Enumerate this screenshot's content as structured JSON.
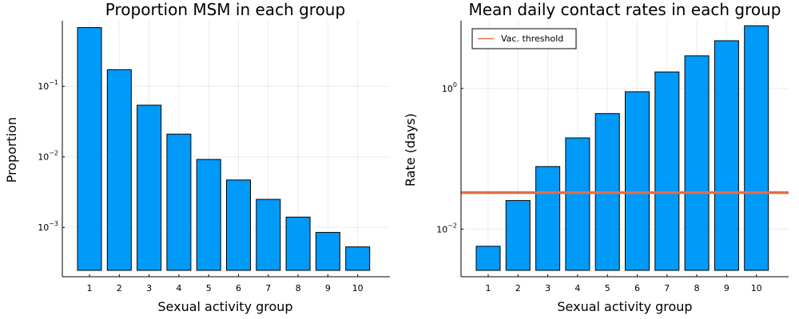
{
  "chart_data": [
    {
      "type": "bar",
      "title": "Proportion MSM in each group",
      "xlabel": "Sexual activity group",
      "ylabel": "Proportion",
      "y_scale": "log10",
      "ylim": [
        0.0002,
        0.85
      ],
      "grid": true,
      "categories": [
        "1",
        "2",
        "3",
        "4",
        "5",
        "6",
        "7",
        "8",
        "9",
        "10"
      ],
      "values": [
        0.68,
        0.172,
        0.054,
        0.021,
        0.0092,
        0.0047,
        0.0025,
        0.0014,
        0.00085,
        0.00053
      ],
      "bar_color": "#009af9",
      "y_ticks": [
        {
          "value": 0.1,
          "mant": "10",
          "exp": "−1"
        },
        {
          "value": 0.01,
          "mant": "10",
          "exp": "−2"
        },
        {
          "value": 0.001,
          "mant": "10",
          "exp": "−3"
        }
      ]
    },
    {
      "type": "bar",
      "title": "Mean daily contact rates in each group",
      "xlabel": "Sexual activity group",
      "ylabel": "Rate (days)",
      "y_scale": "log10",
      "ylim": [
        0.0021,
        9.2
      ],
      "grid": true,
      "categories": [
        "1",
        "2",
        "3",
        "4",
        "5",
        "6",
        "7",
        "8",
        "9",
        "10"
      ],
      "values": [
        0.0057,
        0.0255,
        0.0775,
        0.198,
        0.44,
        0.9,
        1.72,
        2.92,
        4.78,
        7.8
      ],
      "bar_color": "#009af9",
      "hline": {
        "name": "Vac. threshold",
        "value": 0.033,
        "color": "#e26f46"
      },
      "legend": {
        "position": "top-left",
        "entries": [
          "Vac. threshold"
        ]
      },
      "y_ticks": [
        {
          "value": 1,
          "mant": "10",
          "exp": "0"
        },
        {
          "value": 0.01,
          "mant": "10",
          "exp": "−2"
        }
      ]
    }
  ]
}
